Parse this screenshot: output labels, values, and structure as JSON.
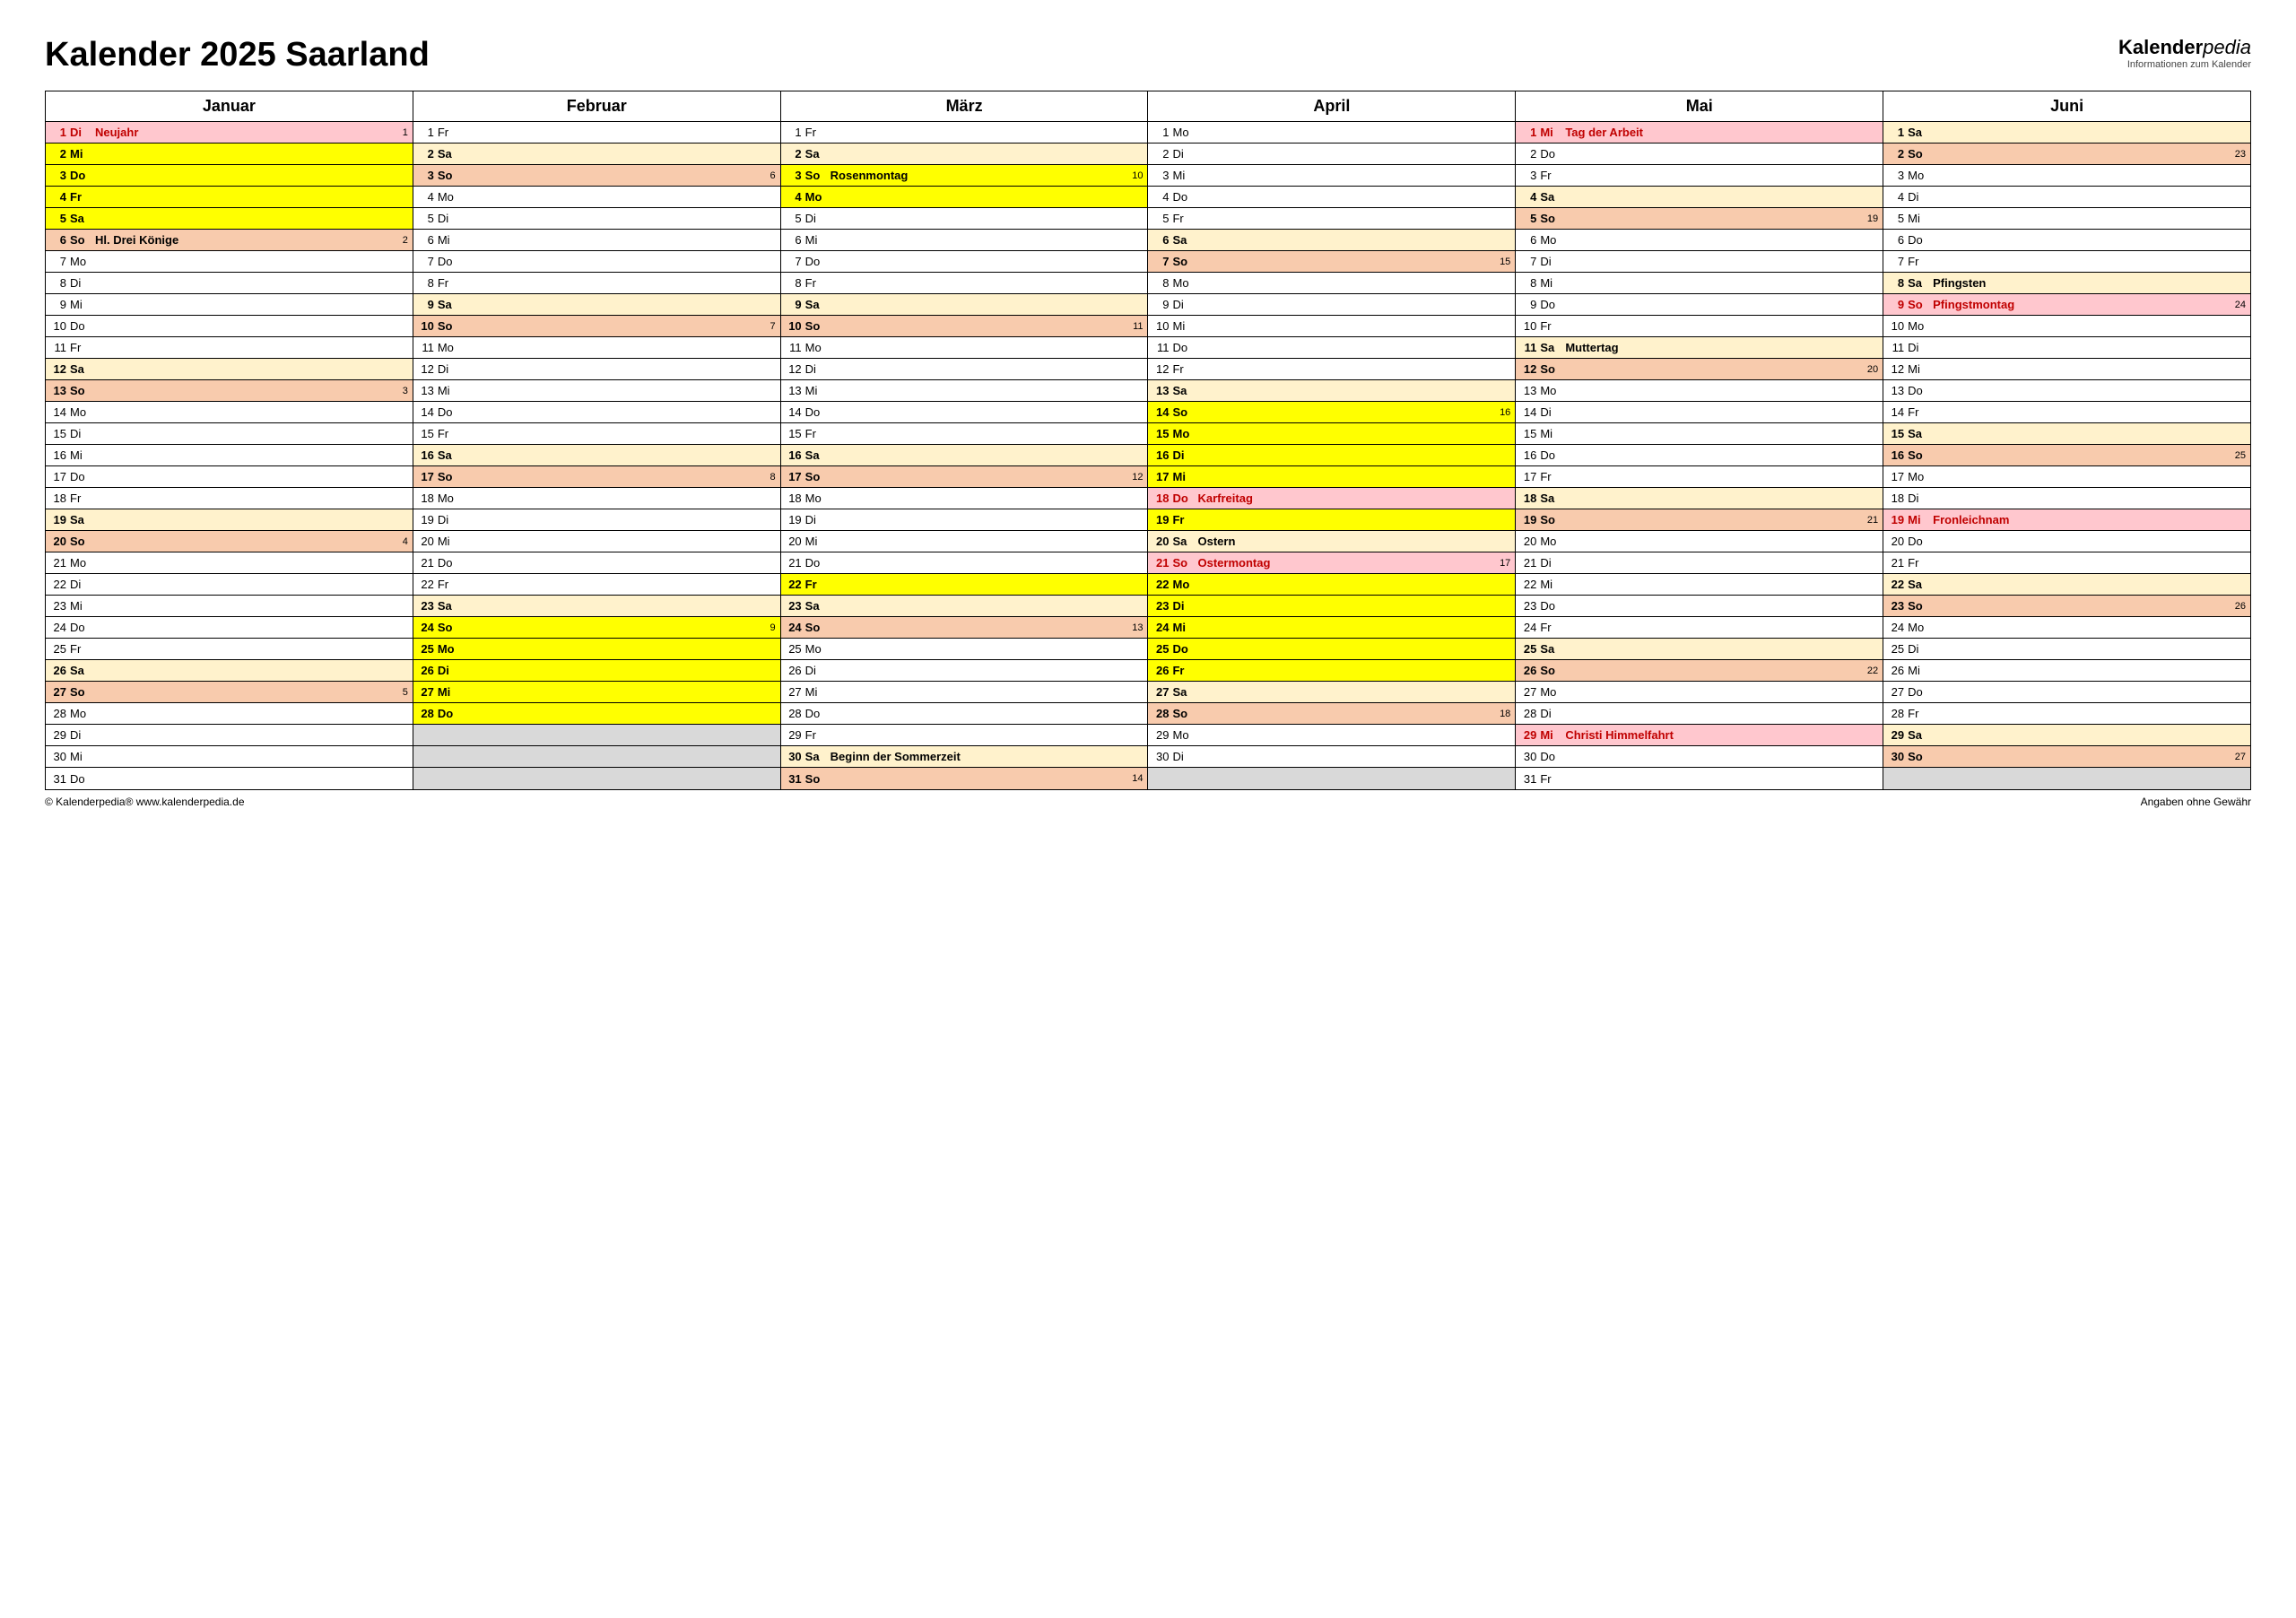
{
  "title": "Kalender 2025 Saarland",
  "brand": {
    "name1": "Kalender",
    "name2": "pedia",
    "sub": "Informationen zum Kalender"
  },
  "footer": {
    "left": "© Kalenderpedia®   www.kalenderpedia.de",
    "right": "Angaben ohne Gewähr"
  },
  "colors": {
    "sat": "#fff2cc",
    "sun": "#f8cbad",
    "vac": "#ffff00",
    "hol": "#ffc7ce",
    "empty": "#d9d9d9"
  },
  "months": [
    "Januar",
    "Februar",
    "März",
    "April",
    "Mai",
    "Juni"
  ],
  "dows": [
    "Mo",
    "Di",
    "Mi",
    "Do",
    "Fr",
    "Sa",
    "So"
  ],
  "monthLengths": [
    31,
    28,
    31,
    30,
    31,
    30
  ],
  "startDow": [
    2,
    5,
    5,
    1,
    3,
    6
  ],
  "holidays": {
    "0": {
      "1": "Neujahr"
    },
    "3": {
      "18": "Karfreitag",
      "21": "Ostermontag"
    },
    "4": {
      "1": "Tag der Arbeit",
      "29": "Christi Himmelfahrt"
    },
    "5": {
      "9": "Pfingstmontag",
      "19": "Fronleichnam"
    }
  },
  "events": {
    "0": {
      "6": "Hl. Drei Könige"
    },
    "2": {
      "3": "Rosenmontag",
      "30": "Beginn der Sommerzeit"
    },
    "3": {
      "20": "Ostern"
    },
    "4": {
      "11": "Muttertag"
    },
    "5": {
      "8": "Pfingsten"
    }
  },
  "vacation": {
    "0": [
      2,
      3,
      4,
      5
    ],
    "1": [
      24,
      25,
      26,
      27,
      28
    ],
    "2": [
      3,
      4,
      22
    ],
    "3": [
      14,
      15,
      16,
      17,
      19,
      22,
      23,
      24,
      25,
      26
    ],
    "5": []
  },
  "weekNums": {
    "0": {
      "1": 1,
      "6": 2,
      "13": 3,
      "20": 4,
      "27": 5
    },
    "1": {
      "3": 6,
      "10": 7,
      "17": 8,
      "24": 9
    },
    "2": {
      "3": 10,
      "10": 11,
      "17": 12,
      "24": 13,
      "31": 14
    },
    "3": {
      "7": 15,
      "14": 16,
      "21": 17,
      "28": 18
    },
    "4": {
      "5": 19,
      "12": 20,
      "19": 21,
      "26": 22
    },
    "5": {
      "2": 23,
      "9": 24,
      "16": 25,
      "23": 26,
      "30": 27
    }
  }
}
